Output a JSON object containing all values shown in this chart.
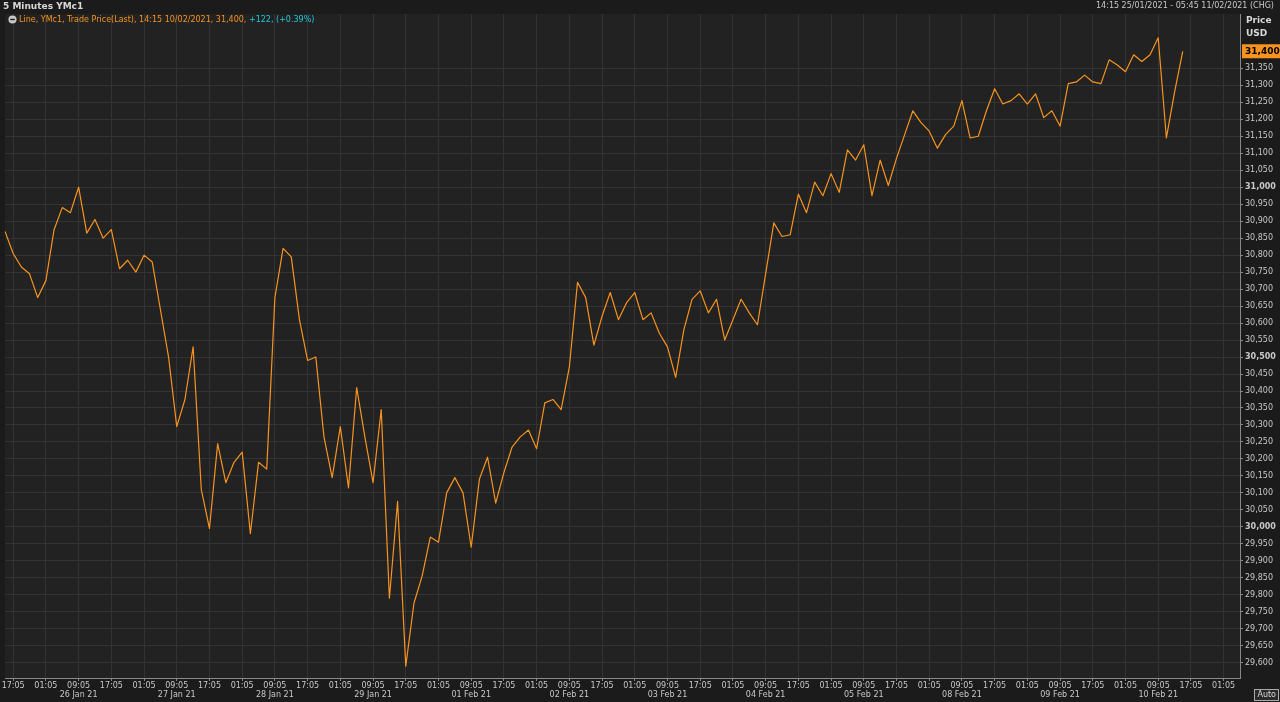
{
  "chart_data": {
    "type": "line",
    "title": "5 Minutes YMc1",
    "subtitle": "14:15 25/01/2021 - 05:45 11/02/2021 (CHG)",
    "ylabel": "Price USD",
    "annotations": [
      "+122, (+0.39%)",
      {
        "text": "31,400",
        "y": 31400
      },
      "Auto"
    ],
    "legend": "top left",
    "grid": true,
    "line_style": "solid",
    "ylim": [
      29555,
      31510
    ],
    "categories": [
      null,
      "17:05",
      null,
      null,
      null,
      "01:05",
      null,
      null,
      null,
      "09:05\n26 Jan 21",
      null,
      null,
      null,
      "17:05",
      null,
      null,
      null,
      "01:05",
      null,
      null,
      null,
      "09:05\n27 Jan 21",
      null,
      null,
      null,
      "17:05",
      null,
      null,
      null,
      "01:05",
      null,
      null,
      null,
      "09:05\n28 Jan 21",
      null,
      null,
      null,
      "17:05",
      null,
      null,
      null,
      "01:05",
      null,
      null,
      null,
      "09:05\n29 Jan 21",
      null,
      null,
      null,
      "17:05",
      null,
      null,
      null,
      "01:05",
      null,
      null,
      null,
      "09:05\n01 Feb 21",
      null,
      null,
      null,
      "17:05",
      null,
      null,
      null,
      "01:05",
      null,
      null,
      null,
      "09:05\n02 Feb 21",
      null,
      null,
      null,
      "17:05",
      null,
      null,
      null,
      "01:05",
      null,
      null,
      null,
      "09:05\n03 Feb 21",
      null,
      null,
      null,
      "17:05",
      null,
      null,
      null,
      "01:05",
      null,
      null,
      null,
      "09:05\n04 Feb 21",
      null,
      null,
      null,
      "17:05",
      null,
      null,
      null,
      "01:05",
      null,
      null,
      null,
      "09:05\n05 Feb 21",
      null,
      null,
      null,
      "17:05",
      null,
      null,
      null,
      "01:05",
      null,
      null,
      null,
      "09:05\n08 Feb 21",
      null,
      null,
      null,
      "17:05",
      null,
      null,
      null,
      "01:05",
      null,
      null,
      null,
      "09:05\n09 Feb 21",
      null,
      null,
      null,
      "17:05",
      null,
      null,
      null,
      "01:05",
      null,
      null,
      null,
      "09:05\n10 Feb 21",
      null,
      null,
      null,
      "17:05",
      null,
      null,
      null,
      "01:05",
      null,
      null
    ],
    "yticks": [
      {
        "value": 29600,
        "label": "29,600"
      },
      {
        "value": 29650,
        "label": "29,650"
      },
      {
        "value": 29700,
        "label": "29,700"
      },
      {
        "value": 29750,
        "label": "29,750"
      },
      {
        "value": 29800,
        "label": "29,800"
      },
      {
        "value": 29850,
        "label": "29,850"
      },
      {
        "value": 29900,
        "label": "29,900"
      },
      {
        "value": 29950,
        "label": "29,950"
      },
      {
        "value": 30000,
        "label": "30,000"
      },
      {
        "value": 30050,
        "label": "30,050"
      },
      {
        "value": 30100,
        "label": "30,100"
      },
      {
        "value": 30150,
        "label": "30,150"
      },
      {
        "value": 30200,
        "label": "30,200"
      },
      {
        "value": 30250,
        "label": "30,250"
      },
      {
        "value": 30300,
        "label": "30,300"
      },
      {
        "value": 30350,
        "label": "30,350"
      },
      {
        "value": 30400,
        "label": "30,400"
      },
      {
        "value": 30450,
        "label": "30,450"
      },
      {
        "value": 30500,
        "label": "30,500"
      },
      {
        "value": 30550,
        "label": "30,550"
      },
      {
        "value": 30600,
        "label": "30,600"
      },
      {
        "value": 30650,
        "label": "30,650"
      },
      {
        "value": 30700,
        "label": "30,700"
      },
      {
        "value": 30750,
        "label": "30,750"
      },
      {
        "value": 30800,
        "label": "30,800"
      },
      {
        "value": 30850,
        "label": "30,850"
      },
      {
        "value": 30900,
        "label": "30,900"
      },
      {
        "value": 30950,
        "label": "30,950"
      },
      {
        "value": 31000,
        "label": "31,000"
      },
      {
        "value": 31050,
        "label": "31,050"
      },
      {
        "value": 31100,
        "label": "31,100"
      },
      {
        "value": 31150,
        "label": "31,150"
      },
      {
        "value": 31200,
        "label": "31,200"
      },
      {
        "value": 31250,
        "label": "31,250"
      },
      {
        "value": 31300,
        "label": "31,300"
      },
      {
        "value": 31350,
        "label": "31,350"
      }
    ],
    "series": [
      {
        "name": "Line, YMc1, Trade Price(Last), 14:15 10/02/2021, 31,400,",
        "color": "#f7931e",
        "values": [
          30870,
          30805,
          30765,
          30745,
          30675,
          30725,
          30875,
          30940,
          30925,
          31000,
          30865,
          30905,
          30850,
          30875,
          30760,
          30785,
          30750,
          30800,
          30780,
          30640,
          30500,
          30295,
          30375,
          30530,
          30110,
          29995,
          30245,
          30130,
          30190,
          30220,
          29980,
          30190,
          30170,
          30675,
          30820,
          30795,
          30610,
          30490,
          30500,
          30265,
          30145,
          30295,
          30115,
          30410,
          30265,
          30130,
          30345,
          29790,
          30075,
          29590,
          29775,
          29855,
          29970,
          29955,
          30100,
          30145,
          30100,
          29940,
          30140,
          30205,
          30070,
          30160,
          30235,
          30265,
          30285,
          30230,
          30365,
          30375,
          30345,
          30470,
          30720,
          30675,
          30535,
          30620,
          30690,
          30610,
          30660,
          30690,
          30610,
          30630,
          30570,
          30530,
          30440,
          30580,
          30670,
          30695,
          30630,
          30670,
          30550,
          30610,
          30670,
          30630,
          30595,
          30745,
          30895,
          30855,
          30860,
          30980,
          30925,
          31015,
          30975,
          31040,
          30985,
          31110,
          31080,
          31125,
          30975,
          31080,
          31005,
          31085,
          31155,
          31225,
          31190,
          31165,
          31115,
          31155,
          31180,
          31255,
          31145,
          31150,
          31225,
          31290,
          31245,
          31255,
          31275,
          31245,
          31275,
          31205,
          31225,
          31180,
          31305,
          31310,
          31330,
          31310,
          31305,
          31375,
          31360,
          31340,
          31390,
          31370,
          31390,
          31440,
          31145,
          31280,
          31400,
          null,
          null,
          null,
          null,
          null,
          null,
          null
        ]
      }
    ]
  }
}
